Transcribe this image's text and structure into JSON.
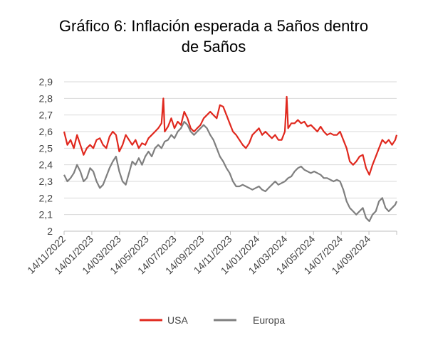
{
  "chart_data": {
    "type": "line",
    "title_lines": [
      "Gráfico 6: Inflación esperada a 5años dentro",
      "de 5años"
    ],
    "xlabel": "",
    "ylabel": "",
    "ylim": [
      2,
      2.9
    ],
    "y_ticks": [
      "2",
      "2,1",
      "2,2",
      "2,3",
      "2,4",
      "2,5",
      "2,6",
      "2,7",
      "2,8",
      "2,9"
    ],
    "x_tick_labels": [
      "14/11/2022",
      "14/01/2023",
      "14/03/2023",
      "14/05/2023",
      "14/07/2023",
      "14/09/2023",
      "14/11/2023",
      "14/01/2024",
      "14/03/2024",
      "14/05/2024",
      "14/07/2024",
      "14/09/2024"
    ],
    "grid": "horizontal",
    "legend_position": "bottom",
    "x_range": [
      "2022-11-14",
      "2024-10-31"
    ],
    "series": [
      {
        "name": "USA",
        "color": "#e0281e",
        "points": [
          [
            "2022-11-14",
            2.6
          ],
          [
            "2022-11-21",
            2.52
          ],
          [
            "2022-11-28",
            2.55
          ],
          [
            "2022-12-05",
            2.5
          ],
          [
            "2022-12-12",
            2.58
          ],
          [
            "2022-12-19",
            2.52
          ],
          [
            "2022-12-26",
            2.46
          ],
          [
            "2023-01-02",
            2.5
          ],
          [
            "2023-01-09",
            2.52
          ],
          [
            "2023-01-16",
            2.5
          ],
          [
            "2023-01-23",
            2.55
          ],
          [
            "2023-01-30",
            2.56
          ],
          [
            "2023-02-06",
            2.52
          ],
          [
            "2023-02-13",
            2.5
          ],
          [
            "2023-02-20",
            2.57
          ],
          [
            "2023-02-27",
            2.6
          ],
          [
            "2023-03-06",
            2.58
          ],
          [
            "2023-03-13",
            2.48
          ],
          [
            "2023-03-20",
            2.52
          ],
          [
            "2023-03-27",
            2.58
          ],
          [
            "2023-04-03",
            2.55
          ],
          [
            "2023-04-10",
            2.52
          ],
          [
            "2023-04-17",
            2.55
          ],
          [
            "2023-04-24",
            2.5
          ],
          [
            "2023-05-01",
            2.53
          ],
          [
            "2023-05-08",
            2.52
          ],
          [
            "2023-05-15",
            2.56
          ],
          [
            "2023-05-22",
            2.58
          ],
          [
            "2023-05-29",
            2.6
          ],
          [
            "2023-06-05",
            2.62
          ],
          [
            "2023-06-12",
            2.65
          ],
          [
            "2023-06-16",
            2.8
          ],
          [
            "2023-06-19",
            2.6
          ],
          [
            "2023-06-26",
            2.63
          ],
          [
            "2023-07-03",
            2.68
          ],
          [
            "2023-07-10",
            2.62
          ],
          [
            "2023-07-17",
            2.66
          ],
          [
            "2023-07-24",
            2.64
          ],
          [
            "2023-07-31",
            2.72
          ],
          [
            "2023-08-07",
            2.68
          ],
          [
            "2023-08-14",
            2.62
          ],
          [
            "2023-08-21",
            2.6
          ],
          [
            "2023-08-28",
            2.62
          ],
          [
            "2023-09-04",
            2.64
          ],
          [
            "2023-09-11",
            2.68
          ],
          [
            "2023-09-18",
            2.7
          ],
          [
            "2023-09-25",
            2.72
          ],
          [
            "2023-10-02",
            2.7
          ],
          [
            "2023-10-09",
            2.68
          ],
          [
            "2023-10-16",
            2.76
          ],
          [
            "2023-10-23",
            2.75
          ],
          [
            "2023-10-30",
            2.7
          ],
          [
            "2023-11-06",
            2.65
          ],
          [
            "2023-11-13",
            2.6
          ],
          [
            "2023-11-20",
            2.58
          ],
          [
            "2023-11-27",
            2.55
          ],
          [
            "2023-12-04",
            2.52
          ],
          [
            "2023-12-11",
            2.5
          ],
          [
            "2023-12-18",
            2.53
          ],
          [
            "2023-12-25",
            2.58
          ],
          [
            "2024-01-01",
            2.6
          ],
          [
            "2024-01-08",
            2.62
          ],
          [
            "2024-01-15",
            2.58
          ],
          [
            "2024-01-22",
            2.6
          ],
          [
            "2024-01-29",
            2.58
          ],
          [
            "2024-02-05",
            2.56
          ],
          [
            "2024-02-12",
            2.58
          ],
          [
            "2024-02-19",
            2.55
          ],
          [
            "2024-02-26",
            2.55
          ],
          [
            "2024-03-04",
            2.6
          ],
          [
            "2024-03-08",
            2.81
          ],
          [
            "2024-03-11",
            2.62
          ],
          [
            "2024-03-18",
            2.65
          ],
          [
            "2024-03-25",
            2.65
          ],
          [
            "2024-04-01",
            2.67
          ],
          [
            "2024-04-08",
            2.65
          ],
          [
            "2024-04-15",
            2.66
          ],
          [
            "2024-04-22",
            2.63
          ],
          [
            "2024-04-29",
            2.64
          ],
          [
            "2024-05-06",
            2.62
          ],
          [
            "2024-05-13",
            2.6
          ],
          [
            "2024-05-20",
            2.63
          ],
          [
            "2024-05-27",
            2.6
          ],
          [
            "2024-06-03",
            2.58
          ],
          [
            "2024-06-10",
            2.59
          ],
          [
            "2024-06-17",
            2.58
          ],
          [
            "2024-06-24",
            2.58
          ],
          [
            "2024-07-01",
            2.6
          ],
          [
            "2024-07-08",
            2.55
          ],
          [
            "2024-07-15",
            2.5
          ],
          [
            "2024-07-22",
            2.42
          ],
          [
            "2024-07-29",
            2.4
          ],
          [
            "2024-08-05",
            2.42
          ],
          [
            "2024-08-12",
            2.45
          ],
          [
            "2024-08-19",
            2.46
          ],
          [
            "2024-08-26",
            2.38
          ],
          [
            "2024-09-02",
            2.34
          ],
          [
            "2024-09-09",
            2.4
          ],
          [
            "2024-09-16",
            2.45
          ],
          [
            "2024-09-23",
            2.5
          ],
          [
            "2024-09-30",
            2.55
          ],
          [
            "2024-10-07",
            2.53
          ],
          [
            "2024-10-14",
            2.55
          ],
          [
            "2024-10-21",
            2.52
          ],
          [
            "2024-10-28",
            2.55
          ],
          [
            "2024-10-31",
            2.58
          ]
        ]
      },
      {
        "name": "Europa",
        "color": "#7f7f7f",
        "points": [
          [
            "2022-11-14",
            2.34
          ],
          [
            "2022-11-21",
            2.3
          ],
          [
            "2022-11-28",
            2.32
          ],
          [
            "2022-12-05",
            2.35
          ],
          [
            "2022-12-12",
            2.4
          ],
          [
            "2022-12-19",
            2.36
          ],
          [
            "2022-12-26",
            2.3
          ],
          [
            "2023-01-02",
            2.32
          ],
          [
            "2023-01-09",
            2.38
          ],
          [
            "2023-01-16",
            2.36
          ],
          [
            "2023-01-23",
            2.3
          ],
          [
            "2023-01-30",
            2.26
          ],
          [
            "2023-02-06",
            2.28
          ],
          [
            "2023-02-13",
            2.33
          ],
          [
            "2023-02-20",
            2.38
          ],
          [
            "2023-02-27",
            2.42
          ],
          [
            "2023-03-06",
            2.45
          ],
          [
            "2023-03-13",
            2.36
          ],
          [
            "2023-03-20",
            2.3
          ],
          [
            "2023-03-27",
            2.28
          ],
          [
            "2023-04-03",
            2.35
          ],
          [
            "2023-04-10",
            2.42
          ],
          [
            "2023-04-17",
            2.4
          ],
          [
            "2023-04-24",
            2.44
          ],
          [
            "2023-05-01",
            2.4
          ],
          [
            "2023-05-08",
            2.45
          ],
          [
            "2023-05-15",
            2.48
          ],
          [
            "2023-05-22",
            2.45
          ],
          [
            "2023-05-29",
            2.5
          ],
          [
            "2023-06-05",
            2.52
          ],
          [
            "2023-06-12",
            2.5
          ],
          [
            "2023-06-19",
            2.54
          ],
          [
            "2023-06-26",
            2.55
          ],
          [
            "2023-07-03",
            2.58
          ],
          [
            "2023-07-10",
            2.56
          ],
          [
            "2023-07-17",
            2.6
          ],
          [
            "2023-07-24",
            2.62
          ],
          [
            "2023-07-31",
            2.66
          ],
          [
            "2023-08-07",
            2.64
          ],
          [
            "2023-08-14",
            2.6
          ],
          [
            "2023-08-21",
            2.58
          ],
          [
            "2023-08-28",
            2.6
          ],
          [
            "2023-09-04",
            2.62
          ],
          [
            "2023-09-11",
            2.64
          ],
          [
            "2023-09-18",
            2.62
          ],
          [
            "2023-09-25",
            2.58
          ],
          [
            "2023-10-02",
            2.55
          ],
          [
            "2023-10-09",
            2.5
          ],
          [
            "2023-10-16",
            2.45
          ],
          [
            "2023-10-23",
            2.42
          ],
          [
            "2023-10-30",
            2.38
          ],
          [
            "2023-11-06",
            2.35
          ],
          [
            "2023-11-13",
            2.3
          ],
          [
            "2023-11-20",
            2.27
          ],
          [
            "2023-11-27",
            2.27
          ],
          [
            "2023-12-04",
            2.28
          ],
          [
            "2023-12-11",
            2.27
          ],
          [
            "2023-12-18",
            2.26
          ],
          [
            "2023-12-25",
            2.25
          ],
          [
            "2024-01-01",
            2.26
          ],
          [
            "2024-01-08",
            2.27
          ],
          [
            "2024-01-15",
            2.25
          ],
          [
            "2024-01-22",
            2.24
          ],
          [
            "2024-01-29",
            2.26
          ],
          [
            "2024-02-05",
            2.28
          ],
          [
            "2024-02-12",
            2.3
          ],
          [
            "2024-02-19",
            2.28
          ],
          [
            "2024-02-26",
            2.29
          ],
          [
            "2024-03-04",
            2.3
          ],
          [
            "2024-03-11",
            2.32
          ],
          [
            "2024-03-18",
            2.33
          ],
          [
            "2024-03-25",
            2.36
          ],
          [
            "2024-04-01",
            2.38
          ],
          [
            "2024-04-08",
            2.39
          ],
          [
            "2024-04-15",
            2.37
          ],
          [
            "2024-04-22",
            2.36
          ],
          [
            "2024-04-29",
            2.35
          ],
          [
            "2024-05-06",
            2.36
          ],
          [
            "2024-05-13",
            2.35
          ],
          [
            "2024-05-20",
            2.34
          ],
          [
            "2024-05-27",
            2.32
          ],
          [
            "2024-06-03",
            2.32
          ],
          [
            "2024-06-10",
            2.31
          ],
          [
            "2024-06-17",
            2.3
          ],
          [
            "2024-06-24",
            2.31
          ],
          [
            "2024-07-01",
            2.3
          ],
          [
            "2024-07-08",
            2.25
          ],
          [
            "2024-07-15",
            2.18
          ],
          [
            "2024-07-22",
            2.14
          ],
          [
            "2024-07-29",
            2.12
          ],
          [
            "2024-08-05",
            2.1
          ],
          [
            "2024-08-12",
            2.12
          ],
          [
            "2024-08-19",
            2.14
          ],
          [
            "2024-08-26",
            2.08
          ],
          [
            "2024-09-02",
            2.06
          ],
          [
            "2024-09-09",
            2.1
          ],
          [
            "2024-09-16",
            2.12
          ],
          [
            "2024-09-23",
            2.18
          ],
          [
            "2024-09-30",
            2.2
          ],
          [
            "2024-10-07",
            2.14
          ],
          [
            "2024-10-14",
            2.12
          ],
          [
            "2024-10-21",
            2.14
          ],
          [
            "2024-10-28",
            2.16
          ],
          [
            "2024-10-31",
            2.18
          ]
        ]
      }
    ]
  }
}
